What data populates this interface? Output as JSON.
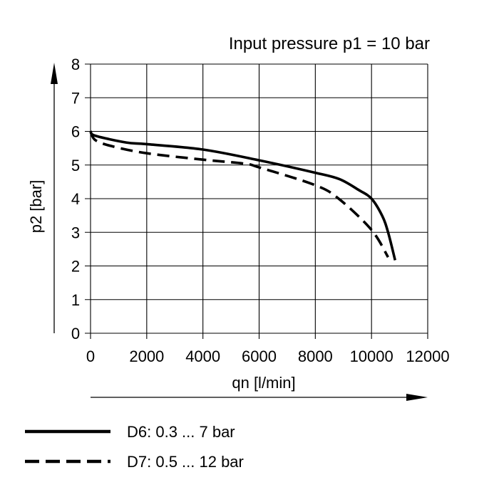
{
  "chart_data": {
    "type": "line",
    "title": "Input pressure p1 = 10 bar",
    "xlabel": "qn  [l/min]",
    "ylabel": "p2  [bar]",
    "xlim": [
      0,
      12000
    ],
    "ylim": [
      0,
      8
    ],
    "xticks": [
      0,
      2000,
      4000,
      6000,
      8000,
      10000,
      12000
    ],
    "yticks": [
      0,
      1,
      2,
      3,
      4,
      5,
      6,
      7,
      8
    ],
    "grid": true,
    "legend_placement": "bottom-left",
    "series": [
      {
        "name": "D6: 0.3 ... 7 bar",
        "style": "solid",
        "color": "#000000",
        "x": [
          0,
          170,
          1266,
          2000,
          4000,
          6000,
          8000,
          8860,
          9540,
          10000,
          10380,
          10590,
          10840
        ],
        "y": [
          6.0,
          5.87,
          5.67,
          5.62,
          5.46,
          5.14,
          4.77,
          4.58,
          4.26,
          4.0,
          3.49,
          3.0,
          2.17
        ]
      },
      {
        "name": "D7: 0.5 ... 12 bar",
        "style": "dashed",
        "color": "#000000",
        "x": [
          0,
          170,
          760,
          2000,
          4000,
          5480,
          6000,
          8000,
          8860,
          10000,
          10590
        ],
        "y": [
          6.0,
          5.74,
          5.56,
          5.35,
          5.16,
          5.04,
          4.93,
          4.4,
          3.98,
          3.07,
          2.26
        ]
      }
    ]
  }
}
